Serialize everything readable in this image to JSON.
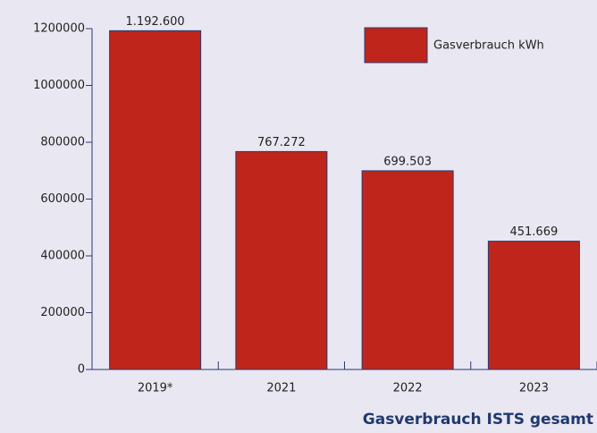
{
  "chart_data": {
    "type": "bar",
    "title": "Gasverbrauch ISTS gesamt",
    "categories": [
      "2019*",
      "2021",
      "2022",
      "2023"
    ],
    "series": [
      {
        "name": "Gasverbrauch kWh",
        "color": "#bf251b",
        "values": [
          1192600,
          767272,
          699503,
          451669
        ],
        "value_labels": [
          "1.192.600",
          "767.272",
          "699.503",
          "451.669"
        ]
      }
    ],
    "ylim": [
      0,
      1200000
    ],
    "yticks": [
      0,
      200000,
      400000,
      600000,
      800000,
      1000000,
      1200000
    ],
    "legend": "top-right"
  }
}
